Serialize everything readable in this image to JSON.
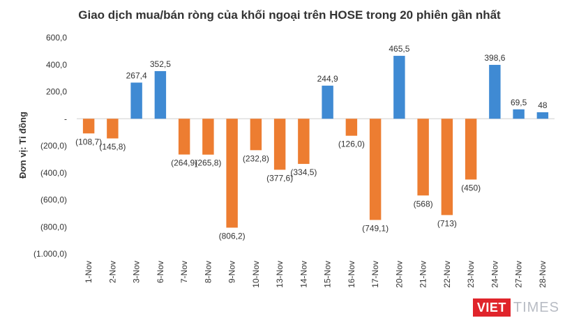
{
  "chart_data": {
    "type": "bar",
    "title": "Giao dịch mua/bán ròng của khối ngoại trên HOSE trong 20 phiên gần nhất",
    "ylabel": "Đơn vị: Tỉ đồng",
    "xlabel": "",
    "ylim": [
      -1000,
      600
    ],
    "yticks": [
      600,
      400,
      200,
      0,
      -200,
      -400,
      -600,
      -800,
      -1000
    ],
    "ytick_labels": [
      "600,0",
      "400,0",
      "200,0",
      "-",
      "(200,0)",
      "(400,0)",
      "(600,0)",
      "(800,0)",
      "(1.000,0)"
    ],
    "categories": [
      "1-Nov",
      "2-Nov",
      "3-Nov",
      "6-Nov",
      "7-Nov",
      "8-Nov",
      "9-Nov",
      "10-Nov",
      "13-Nov",
      "14-Nov",
      "15-Nov",
      "16-Nov",
      "17-Nov",
      "20-Nov",
      "21-Nov",
      "22-Nov",
      "23-Nov",
      "24-Nov",
      "27-Nov",
      "28-Nov"
    ],
    "values": [
      -108.7,
      -145.8,
      267.4,
      352.5,
      -264.9,
      -265.8,
      -806.2,
      -232.8,
      -377.6,
      -334.5,
      244.9,
      -126.0,
      -749.1,
      465.5,
      -568,
      -713,
      -450,
      398.6,
      69.5,
      48
    ],
    "data_labels": [
      "(108,7)",
      "(145,8)",
      "267,4",
      "352,5",
      "(264,9)",
      "(265,8)",
      "(806,2)",
      "(232,8)",
      "(377,6)",
      "(334,5)",
      "244,9",
      "(126,0)",
      "(749,1)",
      "465,5",
      "(568)",
      "(713)",
      "(450)",
      "398,6",
      "69,5",
      "48"
    ],
    "colors": {
      "positive": "#3f8ad3",
      "negative": "#ed7d31"
    },
    "grid": false,
    "legend": "none"
  },
  "brand": {
    "part1": "VIET",
    "part2": "TIMES"
  }
}
